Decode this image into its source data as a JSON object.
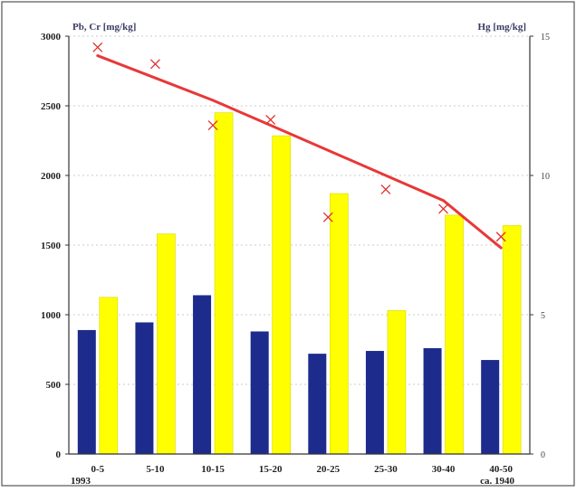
{
  "chart_data": {
    "type": "bar",
    "categories": [
      "0-5",
      "5-10",
      "10-15",
      "15-20",
      "20-25",
      "25-30",
      "30-40",
      "40-50"
    ],
    "series": [
      {
        "values": [
          890,
          945,
          1140,
          880,
          720,
          740,
          760,
          675
        ],
        "color": "#1c2b8c",
        "axis": "left"
      },
      {
        "values": [
          1125,
          1580,
          2450,
          2285,
          1870,
          1030,
          1715,
          1640
        ],
        "color": "#ffff00",
        "axis": "left"
      },
      {
        "type": "scatter",
        "marker": "x",
        "values": [
          14.6,
          14.0,
          11.8,
          12.0,
          8.5,
          9.5,
          8.8,
          7.8
        ],
        "color": "#e03030",
        "axis": "right"
      },
      {
        "type": "line",
        "values": [
          14.3,
          13.5,
          12.7,
          11.8,
          10.9,
          10.0,
          9.1,
          7.4
        ],
        "color": "#e83838",
        "axis": "right"
      }
    ],
    "ylabel": "Pb, Cr [mg/kg]",
    "ylabel_right": "Hg [mg/kg]",
    "ylim": [
      0,
      3000
    ],
    "ylim_right": [
      0,
      15
    ],
    "yticks": [
      "3000",
      "2500",
      "2000",
      "1500",
      "1000",
      "500",
      "0"
    ],
    "yticks_right": [
      "15",
      "10",
      "5",
      "0"
    ],
    "x_annotations": {
      "left": "1993",
      "right": "ca. 1940"
    },
    "grid": "dotted horizontal",
    "legend": "none"
  }
}
